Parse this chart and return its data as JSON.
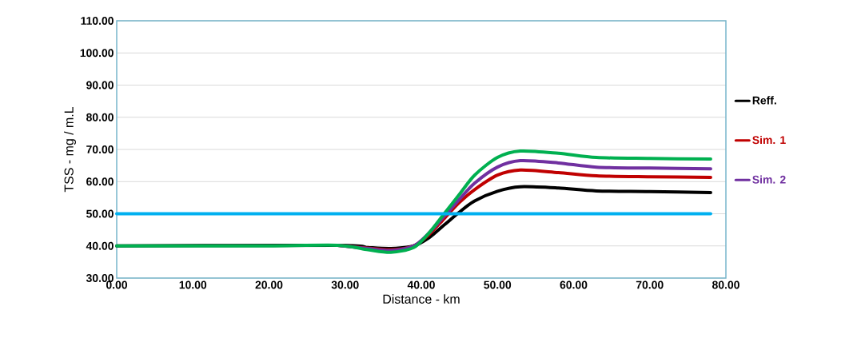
{
  "chart_data": {
    "type": "line",
    "xlabel": "Distance - km",
    "ylabel": "TSS  - mg / m.L",
    "x": [
      0,
      10,
      20,
      29,
      33,
      36,
      39,
      41,
      43,
      45,
      47,
      50,
      53,
      58,
      63,
      70,
      78
    ],
    "series": [
      {
        "name": "Reff.",
        "color": "#000000",
        "values": [
          40,
          null,
          null,
          40.2,
          39.5,
          39.2,
          40,
          42.5,
          46.5,
          50.5,
          54,
          57,
          58.4,
          58,
          57.1,
          56.9,
          56.6
        ]
      },
      {
        "name": "Sim.  1",
        "color": "#c00000",
        "values": [
          null,
          null,
          null,
          40.2,
          39.3,
          38.8,
          40,
          43.5,
          48.5,
          53.5,
          57.5,
          62,
          63.6,
          62.8,
          61.8,
          61.5,
          61.3
        ]
      },
      {
        "name": "Sim.  2",
        "color": "#7030a0",
        "values": [
          null,
          null,
          null,
          40.2,
          39.2,
          38.6,
          40,
          44,
          49.2,
          54.5,
          59.5,
          64.5,
          66.5,
          65.8,
          64.5,
          64.2,
          64
        ]
      },
      {
        "color": "#00b050",
        "values": [
          40,
          40,
          40,
          40.2,
          38.8,
          38,
          39.5,
          44,
          50,
          56,
          62,
          67.5,
          69.5,
          68.8,
          67.5,
          67.2,
          67
        ]
      },
      {
        "color": "#00b0f0",
        "x": [
          0,
          78
        ],
        "values": [
          50,
          50
        ]
      }
    ],
    "xlim": [
      0,
      80
    ],
    "ylim": [
      30,
      110
    ],
    "xticks": [
      {
        "value": 0,
        "label": "0.00"
      },
      {
        "value": 10,
        "label": "10.00"
      },
      {
        "value": 20,
        "label": "20.00"
      },
      {
        "value": 30,
        "label": "30.00"
      },
      {
        "value": 40,
        "label": "40.00"
      },
      {
        "value": 50,
        "label": "50.00"
      },
      {
        "value": 60,
        "label": "60.00"
      },
      {
        "value": 70,
        "label": "70.00"
      },
      {
        "value": 80,
        "label": "80.00"
      }
    ],
    "yticks": [
      {
        "value": 30,
        "label": "30.00"
      },
      {
        "value": 40,
        "label": "40.00"
      },
      {
        "value": 50,
        "label": "50.00"
      },
      {
        "value": 60,
        "label": "60.00"
      },
      {
        "value": 70,
        "label": "70.00"
      },
      {
        "value": 80,
        "label": "80.00"
      },
      {
        "value": 90,
        "label": "90.00"
      },
      {
        "value": 100,
        "label": "100.00"
      },
      {
        "value": 110,
        "label": "110.00"
      }
    ],
    "grid": "y",
    "legend": "right",
    "marker": "none",
    "line_style": "solid"
  }
}
